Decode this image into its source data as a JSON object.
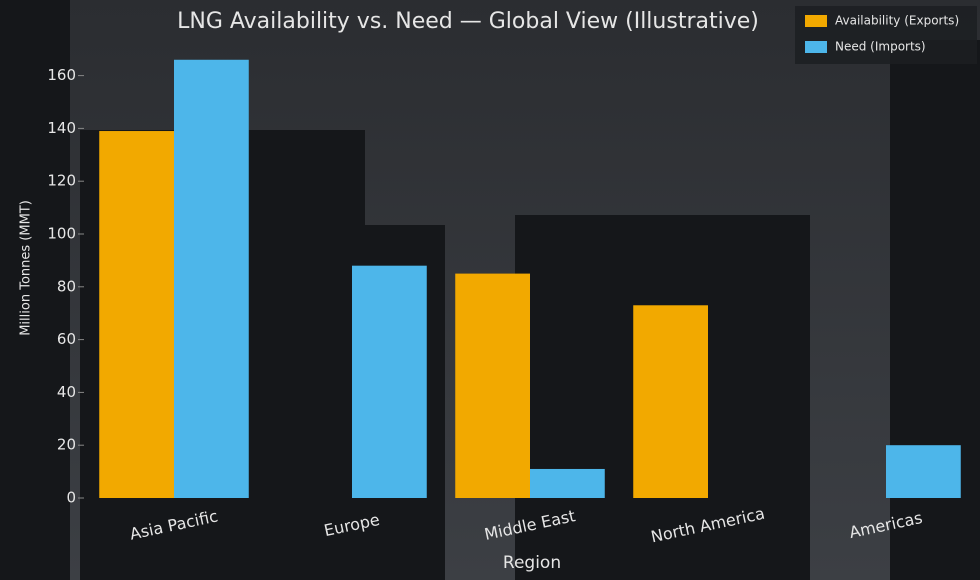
{
  "chart_data": {
    "type": "bar",
    "title": "LNG Availability vs. Need — Global View (Illustrative)",
    "x_label": "Region",
    "y_label": "Million Tonnes (MMT)",
    "categories": [
      "Asia Pacific",
      "Europe",
      "Middle East",
      "North America",
      "Americas"
    ],
    "series": [
      {
        "name": "Availability (Exports)",
        "color": "#f2a900",
        "values": [
          139,
          null,
          85,
          73,
          null
        ]
      },
      {
        "name": "Need (Imports)",
        "color": "#4db6ea",
        "values": [
          166,
          88,
          11,
          null,
          20
        ]
      }
    ],
    "ylim": [
      0,
      175
    ],
    "yticks": [
      0,
      20,
      40,
      60,
      80,
      100,
      120,
      140,
      160
    ],
    "legend": "upper right"
  }
}
